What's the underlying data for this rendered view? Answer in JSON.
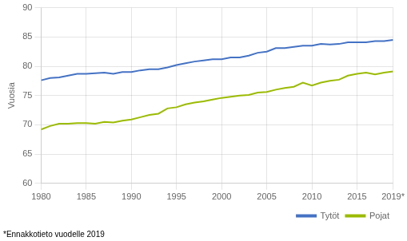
{
  "chart_data": {
    "type": "line",
    "ylabel": "Vuosia",
    "annotations": [
      "*Ennakkotieto vuodelle 2019"
    ],
    "x": [
      1980,
      1981,
      1982,
      1983,
      1984,
      1985,
      1986,
      1987,
      1988,
      1989,
      1990,
      1991,
      1992,
      1993,
      1994,
      1995,
      1996,
      1997,
      1998,
      1999,
      2000,
      2001,
      2002,
      2003,
      2004,
      2005,
      2006,
      2007,
      2008,
      2009,
      2010,
      2011,
      2012,
      2013,
      2014,
      2015,
      2016,
      2017,
      2018,
      2019
    ],
    "series": [
      {
        "name": "Tytöt",
        "color": "#4472C4",
        "values": [
          77.6,
          78.0,
          78.1,
          78.4,
          78.7,
          78.7,
          78.8,
          78.9,
          78.7,
          79.0,
          79.0,
          79.3,
          79.5,
          79.5,
          79.8,
          80.2,
          80.5,
          80.8,
          81.0,
          81.2,
          81.2,
          81.5,
          81.5,
          81.8,
          82.3,
          82.5,
          83.1,
          83.1,
          83.3,
          83.5,
          83.5,
          83.8,
          83.7,
          83.8,
          84.1,
          84.1,
          84.1,
          84.3,
          84.3,
          84.5
        ]
      },
      {
        "name": "Pojat",
        "color": "#9BBB00",
        "values": [
          69.2,
          69.8,
          70.2,
          70.2,
          70.3,
          70.3,
          70.2,
          70.5,
          70.4,
          70.7,
          70.9,
          71.3,
          71.7,
          71.9,
          72.8,
          73.0,
          73.5,
          73.8,
          74.0,
          74.3,
          74.6,
          74.8,
          75.0,
          75.1,
          75.5,
          75.6,
          76.0,
          76.3,
          76.5,
          77.2,
          76.7,
          77.2,
          77.5,
          77.7,
          78.4,
          78.7,
          78.9,
          78.6,
          78.9,
          79.1
        ]
      }
    ],
    "xlim": [
      1980,
      2019
    ],
    "xticks": [
      1980,
      1985,
      1990,
      1995,
      2000,
      2005,
      2010,
      2015,
      {
        "value": 2019,
        "label": "2019*"
      }
    ],
    "ylim": [
      60,
      90
    ],
    "yticks": [
      60,
      65,
      70,
      75,
      80,
      85,
      90
    ],
    "grid": true,
    "legend": "lower right"
  }
}
